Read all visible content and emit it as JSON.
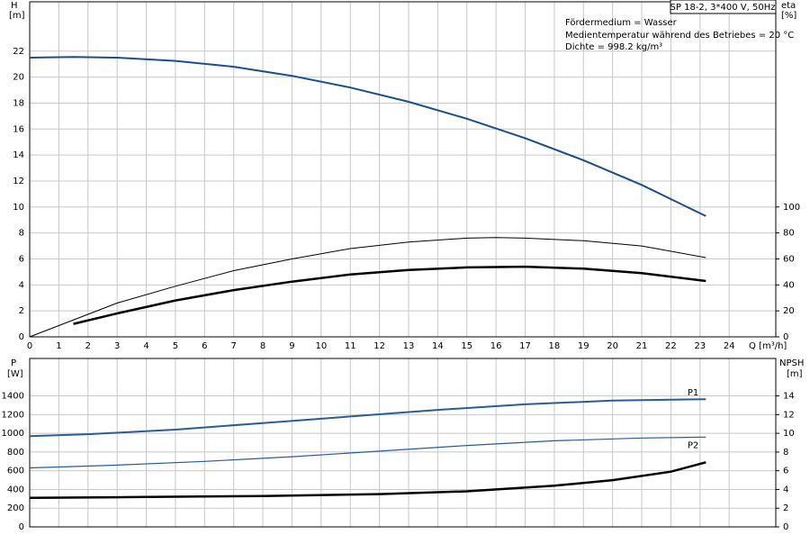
{
  "chart_data": [
    {
      "type": "line",
      "title": "SP 18-2, 3*400 V, 50Hz",
      "annotations": [
        "Fördermedium = Wasser",
        "Medientemperatur während des Betriebes = 20 °C",
        "Dichte = 998.2 kg/m³"
      ],
      "xlabel": "Q [m³/h]",
      "ylabel": "H",
      "yunit": "[m]",
      "y2label": "eta",
      "y2unit": "[%]",
      "xlim": [
        0,
        25.6
      ],
      "xticks": [
        0,
        1,
        2,
        3,
        4,
        5,
        6,
        7,
        8,
        9,
        10,
        11,
        12,
        13,
        14,
        15,
        16,
        17,
        18,
        19,
        20,
        21,
        22,
        23,
        24
      ],
      "ylim": [
        0,
        25.8
      ],
      "yticks": [
        0,
        2,
        4,
        6,
        8,
        10,
        12,
        14,
        16,
        18,
        20,
        22
      ],
      "y2lim": [
        0,
        258
      ],
      "y2ticks": [
        0,
        20,
        40,
        60,
        80,
        100
      ],
      "grid": true,
      "series": [
        {
          "color": "#1c4f8a",
          "line_width": 2,
          "axis": "y",
          "x": [
            0,
            1.5,
            3,
            5,
            7,
            9,
            11,
            13,
            15,
            17,
            19,
            21,
            23.2
          ],
          "values": [
            21.5,
            21.55,
            21.5,
            21.25,
            20.8,
            20.1,
            19.2,
            18.1,
            16.8,
            15.3,
            13.6,
            11.7,
            9.3
          ]
        },
        {
          "color": "#000000",
          "line_width": 1,
          "axis": "y2",
          "x": [
            0,
            3,
            5,
            7,
            9,
            11,
            13,
            15,
            16,
            17,
            19,
            21,
            23.2
          ],
          "values": [
            0,
            26,
            39,
            51,
            60,
            68,
            73,
            76,
            76.5,
            76,
            74,
            70,
            61
          ]
        },
        {
          "color": "#000000",
          "line_width": 2.5,
          "axis": "y2",
          "x": [
            1.5,
            3,
            5,
            7,
            9,
            11,
            13,
            15,
            17,
            19,
            21,
            23.2
          ],
          "values": [
            10,
            18,
            28,
            36,
            42.5,
            48,
            51.5,
            53.5,
            54,
            52.5,
            49,
            43
          ]
        }
      ]
    },
    {
      "type": "line",
      "ylabel": "P",
      "yunit": "[W]",
      "y2label": "NPSH",
      "y2unit": "[m]",
      "xlim": [
        0,
        25.6
      ],
      "ylim": [
        0,
        1800
      ],
      "yticks": [
        0,
        200,
        400,
        600,
        800,
        1000,
        1200,
        1400
      ],
      "y2lim": [
        0,
        18
      ],
      "y2ticks": [
        0,
        2,
        4,
        6,
        8,
        10,
        12,
        14
      ],
      "grid": true,
      "series": [
        {
          "name": "P1",
          "color": "#2b5c97",
          "line_width": 2,
          "axis": "y",
          "x": [
            0,
            2,
            5,
            8,
            11,
            14,
            17,
            20,
            23.2
          ],
          "values": [
            970,
            990,
            1040,
            1110,
            1180,
            1250,
            1310,
            1350,
            1365
          ]
        },
        {
          "name": "P2",
          "color": "#2b5c97",
          "line_width": 1.2,
          "axis": "y",
          "x": [
            0,
            3,
            6,
            9,
            12,
            15,
            18,
            21,
            23.2
          ],
          "values": [
            630,
            660,
            700,
            750,
            810,
            870,
            920,
            950,
            960
          ]
        },
        {
          "color": "#000000",
          "line_width": 2.5,
          "axis": "y2",
          "x": [
            0,
            4,
            8,
            12,
            15,
            18,
            20,
            22,
            23.2
          ],
          "values": [
            3.1,
            3.2,
            3.3,
            3.5,
            3.8,
            4.4,
            5.0,
            5.9,
            6.9
          ]
        }
      ]
    }
  ]
}
